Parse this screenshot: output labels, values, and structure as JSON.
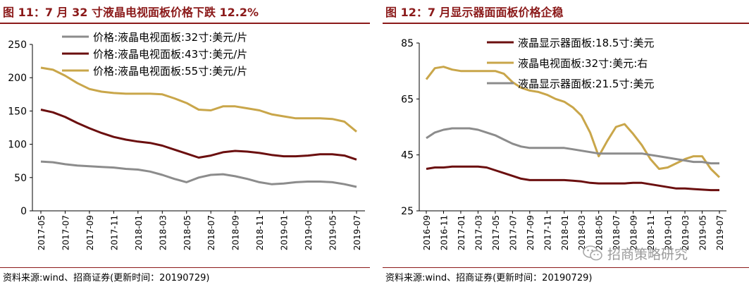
{
  "charts": [
    {
      "figure_title": "图 11：7 月 32 寸液晶电视面板价格下跌 12.2%",
      "source": "资料来源:wind、招商证券(更新时间：20190729)"
    },
    {
      "figure_title": "图 12：7 月显示器面面板价格企稳",
      "source": "资料来源:wind、招商证券(更新时间：20190729)",
      "watermark_text": "招商策略研究"
    }
  ],
  "colors": {
    "title": "#8b1a1a",
    "gray": "#8c8c8c",
    "darkred": "#6b0f0f",
    "gold": "#c9a64a"
  },
  "chart_data": [
    {
      "type": "line",
      "title": "图 11：7 月 32 寸液晶电视面板价格下跌 12.2%",
      "xlabel": "",
      "ylabel": "",
      "ylim": [
        0,
        250
      ],
      "yticks": [
        "0",
        "50",
        "100",
        "150",
        "200",
        "250"
      ],
      "x": [
        "2017-05",
        "2017-06",
        "2017-07",
        "2017-08",
        "2017-09",
        "2017-10",
        "2017-11",
        "2017-12",
        "2018-01",
        "2018-02",
        "2018-03",
        "2018-04",
        "2018-05",
        "2018-06",
        "2018-07",
        "2018-08",
        "2018-09",
        "2018-10",
        "2018-11",
        "2018-12",
        "2019-01",
        "2019-02",
        "2019-03",
        "2019-04",
        "2019-05",
        "2019-06",
        "2019-07"
      ],
      "xtick_labels": [
        "2017-05",
        "2017-07",
        "2017-09",
        "2017-11",
        "2018-01",
        "2018-03",
        "2018-05",
        "2018-07",
        "2018-09",
        "2018-11",
        "2019-01",
        "2019-03",
        "2019-05",
        "2019-07"
      ],
      "legend_position": "top-right",
      "series": [
        {
          "name": "价格:液晶电视面板:32寸:美元/片",
          "color": "#8c8c8c",
          "values": [
            74,
            73,
            70,
            68,
            67,
            66,
            65,
            63,
            62,
            59,
            54,
            48,
            43,
            50,
            54,
            55,
            52,
            48,
            43,
            40,
            41,
            43,
            44,
            44,
            43,
            40,
            36
          ]
        },
        {
          "name": "价格:液晶电视面板:43寸:美元/片",
          "color": "#6b0f0f",
          "values": [
            152,
            148,
            141,
            132,
            124,
            117,
            111,
            107,
            104,
            102,
            98,
            92,
            86,
            80,
            83,
            88,
            90,
            89,
            87,
            84,
            82,
            82,
            83,
            85,
            85,
            83,
            77
          ]
        },
        {
          "name": "价格:液晶电视面板:55寸:美元/片",
          "color": "#c9a64a",
          "values": [
            215,
            212,
            203,
            192,
            183,
            179,
            177,
            176,
            176,
            176,
            175,
            169,
            162,
            152,
            151,
            157,
            157,
            154,
            151,
            145,
            142,
            139,
            139,
            139,
            138,
            134,
            119
          ]
        }
      ]
    },
    {
      "type": "line",
      "title": "图 12：7 月显示器面面板价格企稳",
      "xlabel": "",
      "ylabel": "",
      "ylim": [
        25,
        85
      ],
      "yticks": [
        "25",
        "45",
        "65",
        "85"
      ],
      "x": [
        "2016-09",
        "2016-10",
        "2016-11",
        "2016-12",
        "2017-01",
        "2017-02",
        "2017-03",
        "2017-04",
        "2017-05",
        "2017-06",
        "2017-07",
        "2017-08",
        "2017-09",
        "2017-10",
        "2017-11",
        "2017-12",
        "2018-01",
        "2018-02",
        "2018-03",
        "2018-04",
        "2018-05",
        "2018-06",
        "2018-07",
        "2018-08",
        "2018-09",
        "2018-10",
        "2018-11",
        "2018-12",
        "2019-01",
        "2019-02",
        "2019-03",
        "2019-04",
        "2019-05",
        "2019-06",
        "2019-07"
      ],
      "xtick_labels": [
        "2016-09",
        "2016-11",
        "2017-01",
        "2017-03",
        "2017-05",
        "2017-07",
        "2017-09",
        "2017-11",
        "2018-01",
        "2018-03",
        "2018-05",
        "2018-07",
        "2018-09",
        "2018-11",
        "2019-01",
        "2019-03",
        "2019-05",
        "2019-07"
      ],
      "legend_position": "top-right",
      "series": [
        {
          "name": "液晶显示器面板:18.5寸:美元",
          "color": "#6b0f0f",
          "values": [
            40,
            40.5,
            40.5,
            40.8,
            40.8,
            40.8,
            40.8,
            40.5,
            39.5,
            38.5,
            37.5,
            36.5,
            36,
            36,
            36,
            36,
            36,
            35.8,
            35.5,
            35,
            34.8,
            34.8,
            34.8,
            34.8,
            35,
            35,
            34.5,
            34,
            33.5,
            33,
            33,
            32.8,
            32.6,
            32.4,
            32.4
          ]
        },
        {
          "name": "液晶电视面板:32寸:美元:右",
          "color": "#c9a64a",
          "values": [
            72,
            76,
            76.5,
            75.5,
            75,
            75,
            75,
            75,
            75,
            74,
            71,
            69,
            68,
            67.5,
            66.5,
            65,
            64,
            62,
            59,
            53,
            44.5,
            50,
            55,
            56,
            52.5,
            48.5,
            43.5,
            40,
            40.5,
            42,
            43.5,
            44.5,
            44.5,
            40,
            37
          ]
        },
        {
          "name": "液晶显示器面板:21.5寸:美元",
          "color": "#8c8c8c",
          "values": [
            51,
            53,
            54,
            54.5,
            54.5,
            54.5,
            54,
            53,
            52,
            50.5,
            49,
            48,
            47.5,
            47.5,
            47.5,
            47.5,
            47.5,
            47,
            46.5,
            46,
            45.5,
            45.5,
            45.5,
            45.5,
            45.5,
            45.5,
            45,
            44.5,
            44,
            43.5,
            43,
            42.5,
            42.5,
            42,
            42
          ]
        }
      ]
    }
  ]
}
